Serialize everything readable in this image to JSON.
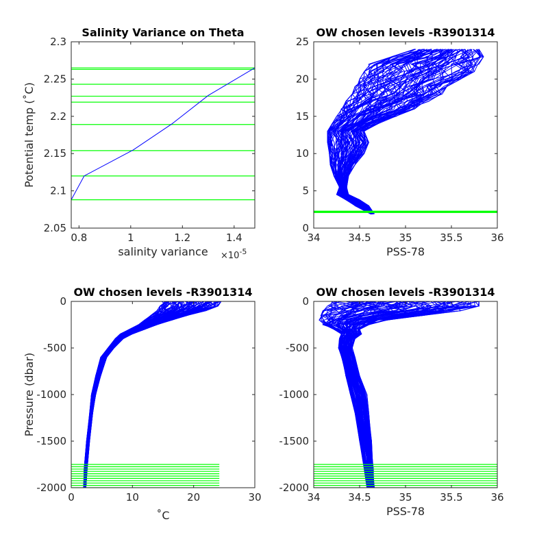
{
  "colors": {
    "profile": "#0000ff",
    "levels": "#00ff00",
    "axes": "#262626"
  },
  "chart_data": [
    {
      "type": "line",
      "title": "Salinity Variance on Theta",
      "xlabel": "salinity variance",
      "xmultiplier": "×10",
      "xmultiplier_exp": "-5",
      "ylabel": "Potential temp (˚C)",
      "xlim": [
        0.77,
        1.48
      ],
      "ylim": [
        2.05,
        2.3
      ],
      "xticks": [
        0.8,
        1,
        1.2,
        1.4
      ],
      "xtick_labels": [
        "0.8",
        "1",
        "1.2",
        "1.4"
      ],
      "yticks": [
        2.05,
        2.1,
        2.15,
        2.2,
        2.25,
        2.3
      ],
      "ytick_labels": [
        "2.05",
        "2.1",
        "2.15",
        "2.2",
        "2.25",
        "2.3"
      ],
      "series": [
        {
          "x": [
            0.77,
            0.82,
            1.01,
            1.16,
            1.3,
            1.48
          ],
          "y": [
            2.088,
            2.12,
            2.155,
            2.19,
            2.228,
            2.265
          ]
        }
      ],
      "levels": [
        2.088,
        2.12,
        2.154,
        2.189,
        2.219,
        2.227,
        2.243,
        2.263,
        2.265
      ]
    },
    {
      "type": "line",
      "title": "OW chosen levels -R3901314",
      "xlabel": "PSS-78",
      "ylabel": "",
      "xlim": [
        34,
        36
      ],
      "ylim": [
        0,
        25
      ],
      "xticks": [
        34,
        34.5,
        35,
        35.5,
        36
      ],
      "xtick_labels": [
        "34",
        "34.5",
        "35",
        "35.5",
        "36"
      ],
      "yticks": [
        0,
        5,
        10,
        15,
        20,
        25
      ],
      "ytick_labels": [
        "0",
        "5",
        "10",
        "15",
        "20",
        "25"
      ],
      "profile_envelope": {
        "y": [
          1.9,
          3.0,
          3.8,
          4.5,
          5.5,
          7.0,
          8.5,
          10.0,
          11.5,
          13.0,
          14.0,
          15.0,
          16.0,
          17.0,
          18.0,
          19.0,
          20.0,
          21.0,
          22.0,
          23.0,
          24.0
        ],
        "x_min": [
          34.62,
          34.45,
          34.35,
          34.25,
          34.28,
          34.22,
          34.18,
          34.17,
          34.15,
          34.15,
          34.2,
          34.25,
          34.3,
          34.35,
          34.42,
          34.45,
          34.5,
          34.55,
          34.6,
          34.85,
          35.1
        ],
        "x_max": [
          34.66,
          34.6,
          34.5,
          34.38,
          34.36,
          34.38,
          34.45,
          34.55,
          34.6,
          34.55,
          34.7,
          34.9,
          35.1,
          35.25,
          35.4,
          35.45,
          35.6,
          35.75,
          35.8,
          35.85,
          35.8
        ]
      },
      "levels_y": [
        2.088,
        2.12,
        2.154,
        2.189,
        2.219,
        2.227,
        2.243,
        2.263,
        2.265
      ]
    },
    {
      "type": "line",
      "title": "OW chosen levels -R3901314",
      "xlabel": "˚C",
      "ylabel": "Pressure (dbar)",
      "xlim": [
        0,
        30
      ],
      "ylim": [
        -2000,
        0
      ],
      "xticks": [
        0,
        10,
        20,
        30
      ],
      "xtick_labels": [
        "0",
        "10",
        "20",
        "30"
      ],
      "yticks": [
        -2000,
        -1500,
        -1000,
        -500,
        0
      ],
      "ytick_labels": [
        "-2000",
        "-1500",
        "-1000",
        "-500",
        "0"
      ],
      "profile_envelope": {
        "y": [
          -2000,
          -1800,
          -1500,
          -1200,
          -1000,
          -800,
          -600,
          -500,
          -400,
          -350,
          -300,
          -250,
          -200,
          -150,
          -100,
          -50,
          0
        ],
        "x_min": [
          2.0,
          2.1,
          2.5,
          3.0,
          3.3,
          4.0,
          4.8,
          6.0,
          7.2,
          8.0,
          9.5,
          11.0,
          12.0,
          13.0,
          14.0,
          14.5,
          14.8
        ],
        "x_max": [
          2.4,
          2.6,
          3.0,
          3.5,
          4.0,
          4.8,
          5.8,
          7.0,
          8.5,
          10.0,
          12.0,
          14.0,
          16.5,
          19.0,
          22.0,
          24.0,
          24.5
        ]
      },
      "levels_y": [
        -2000,
        -1975,
        -1950,
        -1925,
        -1900,
        -1875,
        -1850,
        -1825,
        -1800,
        -1775,
        -1750
      ],
      "levels_xrange": [
        0,
        24.2
      ]
    },
    {
      "type": "line",
      "title": "OW chosen levels -R3901314",
      "xlabel": "PSS-78",
      "ylabel": "",
      "xlim": [
        34,
        36
      ],
      "ylim": [
        -2000,
        0
      ],
      "xticks": [
        34,
        34.5,
        35,
        35.5,
        36
      ],
      "xtick_labels": [
        "34",
        "34.5",
        "35",
        "35.5",
        "36"
      ],
      "yticks": [
        -2000,
        -1500,
        -1000,
        -500,
        0
      ],
      "ytick_labels": [
        "-2000",
        "-1500",
        "-1000",
        "-500",
        "0"
      ],
      "profile_envelope": {
        "y": [
          -2000,
          -1800,
          -1500,
          -1200,
          -1000,
          -800,
          -600,
          -500,
          -400,
          -350,
          -300,
          -250,
          -200,
          -150,
          -100,
          -50,
          0
        ],
        "x_min": [
          34.58,
          34.55,
          34.5,
          34.45,
          34.4,
          34.35,
          34.3,
          34.27,
          34.28,
          34.3,
          34.22,
          34.1,
          34.06,
          34.08,
          34.1,
          34.15,
          34.2
        ],
        "x_max": [
          34.66,
          34.65,
          34.63,
          34.6,
          34.58,
          34.5,
          34.45,
          34.42,
          34.45,
          34.52,
          34.5,
          34.6,
          34.8,
          35.2,
          35.6,
          35.8,
          35.8
        ]
      },
      "levels_y": [
        -2000,
        -1975,
        -1950,
        -1925,
        -1900,
        -1875,
        -1850,
        -1825,
        -1800,
        -1775,
        -1750
      ],
      "levels_xrange": [
        34,
        36
      ]
    }
  ]
}
